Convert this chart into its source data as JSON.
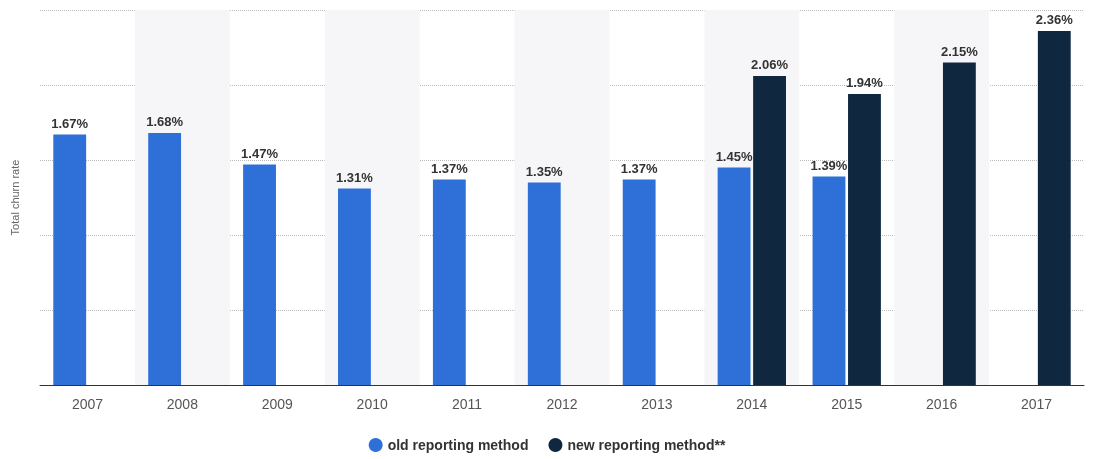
{
  "chart_data": {
    "type": "bar",
    "ylabel": "Total churn rate",
    "categories": [
      "2007",
      "2008",
      "2009",
      "2010",
      "2011",
      "2012",
      "2013",
      "2014",
      "2015",
      "2016",
      "2017"
    ],
    "series": [
      {
        "name": "old reporting method",
        "color": "#2f70d8",
        "values": [
          1.67,
          1.68,
          1.47,
          1.31,
          1.37,
          1.35,
          1.37,
          1.45,
          1.39,
          null,
          null
        ],
        "value_labels": [
          "1.67%",
          "1.68%",
          "1.47%",
          "1.31%",
          "1.37%",
          "1.35%",
          "1.37%",
          "1.45%",
          "1.39%",
          null,
          null
        ]
      },
      {
        "name": "new reporting method**",
        "color": "#0f2840",
        "values": [
          null,
          null,
          null,
          null,
          null,
          null,
          null,
          2.06,
          1.94,
          2.15,
          2.36
        ],
        "value_labels": [
          null,
          null,
          null,
          null,
          null,
          null,
          null,
          "2.06%",
          "1.94%",
          "2.15%",
          "2.36%"
        ]
      }
    ],
    "tick_labels": "x",
    "grid": "y",
    "legend": "bottom"
  }
}
